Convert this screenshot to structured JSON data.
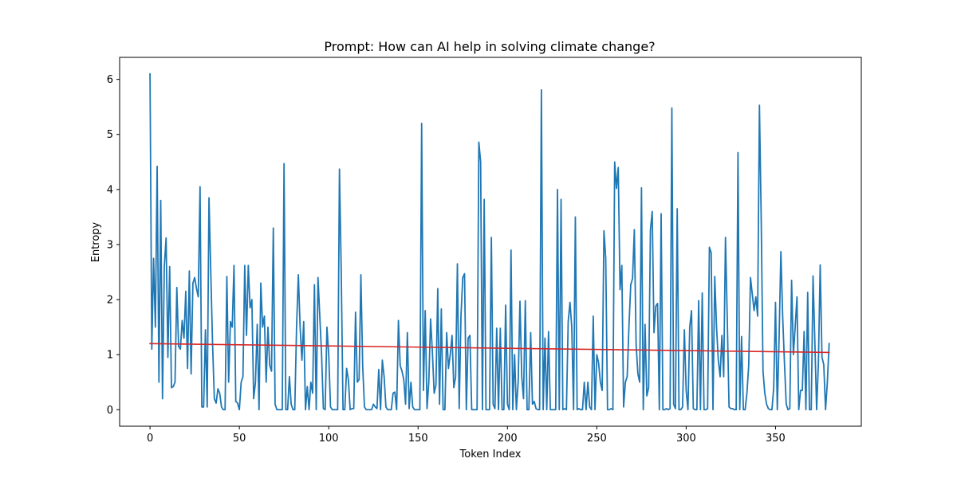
{
  "chart_data": {
    "type": "line",
    "title": "Prompt: How can AI help in solving climate change?",
    "xlabel": "Token Index",
    "ylabel": "Entropy",
    "xlim": [
      -17,
      398
    ],
    "ylim": [
      -0.3,
      6.4
    ],
    "xticks": [
      0,
      50,
      100,
      150,
      200,
      250,
      300,
      350
    ],
    "yticks": [
      0,
      1,
      2,
      3,
      4,
      5,
      6
    ],
    "grid": false,
    "legend": "none",
    "series": [
      {
        "role": "entropy",
        "color": "#1f77b4",
        "y": [
          6.1,
          1.1,
          2.75,
          1.5,
          4.42,
          0.5,
          3.8,
          0.2,
          2.6,
          3.12,
          0.95,
          2.6,
          0.4,
          0.42,
          0.5,
          2.22,
          1.15,
          1.1,
          1.62,
          1.3,
          2.15,
          0.75,
          2.52,
          0.65,
          2.3,
          2.4,
          2.2,
          2.05,
          4.05,
          0.05,
          0.05,
          1.45,
          0.05,
          3.85,
          2.5,
          1.2,
          0.2,
          0.12,
          0.38,
          0.3,
          0.05,
          0.0,
          0.0,
          2.42,
          0.5,
          1.6,
          1.5,
          2.62,
          0.15,
          0.12,
          0.0,
          0.5,
          0.6,
          2.62,
          1.35,
          2.62,
          1.85,
          2.0,
          0.2,
          0.5,
          1.55,
          0.0,
          2.3,
          1.5,
          1.7,
          0.5,
          1.5,
          0.8,
          0.7,
          3.3,
          0.1,
          0.0,
          0.0,
          0.0,
          0.0,
          4.47,
          0.0,
          0.0,
          0.6,
          0.1,
          0.0,
          0.0,
          1.5,
          2.45,
          1.5,
          0.9,
          1.6,
          0.0,
          0.42,
          0.0,
          0.5,
          0.3,
          2.27,
          0.0,
          2.4,
          1.7,
          1.0,
          0.02,
          0.0,
          1.5,
          1.0,
          0.05,
          0.0,
          0.0,
          0.0,
          0.0,
          4.37,
          2.5,
          0.0,
          0.0,
          0.75,
          0.55,
          0.0,
          0.02,
          0.02,
          1.77,
          0.5,
          0.55,
          2.45,
          0.8,
          0.05,
          0.0,
          0.0,
          0.0,
          0.0,
          0.1,
          0.05,
          0.02,
          0.73,
          0.0,
          0.9,
          0.6,
          0.05,
          0.0,
          0.0,
          0.0,
          0.3,
          0.32,
          0.0,
          1.62,
          0.8,
          0.7,
          0.55,
          0.1,
          1.4,
          0.02,
          0.5,
          0.05,
          0.0,
          0.0,
          0.0,
          0.0,
          5.2,
          0.35,
          1.8,
          0.02,
          0.5,
          1.65,
          1.05,
          0.3,
          0.45,
          2.2,
          0.1,
          1.83,
          0.0,
          0.0,
          1.4,
          0.75,
          1.0,
          1.35,
          0.4,
          0.6,
          2.65,
          0.02,
          1.7,
          2.4,
          2.47,
          0.0,
          1.3,
          1.35,
          0.0,
          0.0,
          0.0,
          0.0,
          4.86,
          4.5,
          0.0,
          3.82,
          0.0,
          0.0,
          0.0,
          3.13,
          0.1,
          0.02,
          1.48,
          0.0,
          1.48,
          0.0,
          0.0,
          1.9,
          0.1,
          0.0,
          2.9,
          0.0,
          1.0,
          0.0,
          0.5,
          1.97,
          0.6,
          0.2,
          1.98,
          0.0,
          0.0,
          1.4,
          0.1,
          0.15,
          0.02,
          0.0,
          0.0,
          5.81,
          0.0,
          1.3,
          0.0,
          1.42,
          0.0,
          0.0,
          0.0,
          0.0,
          4.0,
          0.0,
          3.82,
          0.0,
          0.02,
          0.0,
          1.6,
          1.95,
          1.5,
          0.0,
          3.5,
          0.0,
          0.02,
          0.0,
          0.0,
          0.5,
          0.0,
          0.5,
          0.05,
          0.0,
          1.7,
          0.0,
          1.0,
          0.85,
          0.5,
          0.35,
          3.25,
          2.75,
          0.0,
          0.0,
          0.02,
          0.0,
          4.5,
          4.02,
          4.4,
          2.18,
          2.62,
          0.05,
          0.5,
          0.6,
          1.52,
          2.27,
          2.38,
          3.27,
          1.18,
          0.65,
          0.5,
          4.03,
          0.0,
          1.55,
          0.25,
          0.4,
          3.26,
          3.6,
          1.4,
          1.88,
          1.93,
          0.0,
          3.56,
          0.0,
          0.0,
          0.02,
          0.0,
          0.02,
          5.48,
          0.1,
          0.02,
          3.65,
          0.0,
          0.0,
          0.05,
          1.45,
          0.35,
          0.0,
          1.5,
          1.8,
          0.02,
          0.0,
          0.0,
          1.98,
          0.0,
          2.12,
          0.0,
          0.0,
          0.02,
          2.95,
          2.85,
          0.0,
          2.42,
          1.5,
          0.9,
          0.6,
          1.35,
          0.6,
          3.13,
          1.65,
          0.05,
          0.02,
          0.02,
          0.0,
          0.0,
          4.67,
          0.0,
          1.33,
          0.0,
          0.0,
          0.3,
          0.8,
          2.4,
          2.1,
          1.8,
          2.05,
          1.7,
          5.53,
          3.45,
          0.7,
          0.3,
          0.1,
          0.02,
          0.0,
          0.0,
          0.4,
          1.95,
          0.0,
          1.3,
          2.87,
          1.7,
          0.85,
          0.1,
          0.0,
          0.02,
          2.35,
          1.0,
          1.5,
          2.05,
          0.0,
          0.35,
          0.35,
          1.42,
          0.0,
          2.13,
          0.0,
          0.0,
          2.43,
          1.25,
          0.0,
          0.85,
          2.63,
          0.95,
          0.82,
          0.0,
          0.5,
          1.2
        ]
      },
      {
        "role": "trend",
        "color": "#d62728",
        "x": [
          0,
          380
        ],
        "y": [
          1.2,
          1.04
        ]
      }
    ]
  }
}
